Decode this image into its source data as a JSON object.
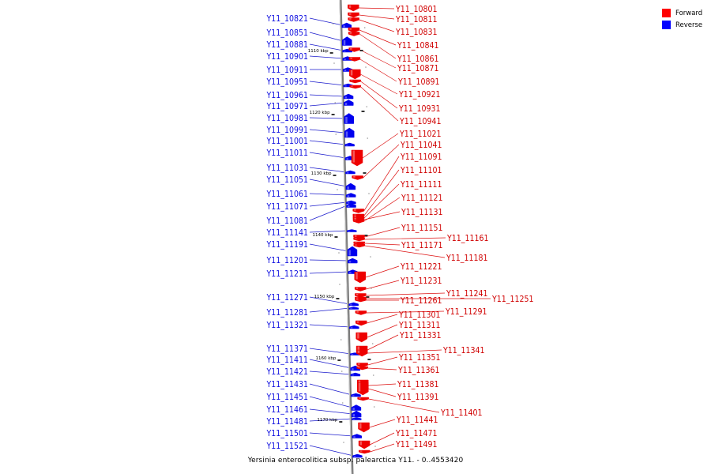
{
  "caption": "Yersinia enterocolitica subsp. palearctica Y11. - 0..4553420",
  "legend": [
    {
      "label": "Forward",
      "color": "#ff0000"
    },
    {
      "label": "Reverse",
      "color": "#0000ff"
    }
  ],
  "colors": {
    "forward": "#ee0000",
    "reverse": "#0000ee",
    "forward_label": "#d00000",
    "reverse_label": "#1010e0",
    "backbone": "#888888"
  },
  "kbp_ticks": [
    "1110 kbp",
    "1120 kbp",
    "1130 kbp",
    "1140 kbp",
    "1150 kbp",
    "1160 kbp",
    "1170 kbp"
  ],
  "reverse_genes": [
    "Y11_10821",
    "Y11_10851",
    "Y11_10881",
    "Y11_10901",
    "Y11_10911",
    "Y11_10951",
    "Y11_10961",
    "Y11_10971",
    "Y11_10981",
    "Y11_10991",
    "Y11_11001",
    "Y11_11011",
    "Y11_11031",
    "Y11_11051",
    "Y11_11061",
    "Y11_11071",
    "Y11_11081",
    "Y11_11141",
    "Y11_11191",
    "Y11_11201",
    "Y11_11211",
    "Y11_11271",
    "Y11_11281",
    "Y11_11321",
    "Y11_11371",
    "Y11_11411",
    "Y11_11421",
    "Y11_11431",
    "Y11_11451",
    "Y11_11461",
    "Y11_11481",
    "Y11_11501",
    "Y11_11521"
  ],
  "forward_genes": [
    "Y11_10801",
    "Y11_10811",
    "Y11_10831",
    "Y11_10841",
    "Y11_10861",
    "Y11_10871",
    "Y11_10891",
    "Y11_10921",
    "Y11_10931",
    "Y11_10941",
    "Y11_11021",
    "Y11_11041",
    "Y11_11091",
    "Y11_11101",
    "Y11_11111",
    "Y11_11121",
    "Y11_11131",
    "Y11_11151",
    "Y11_11161",
    "Y11_11171",
    "Y11_11181",
    "Y11_11221",
    "Y11_11231",
    "Y11_11241",
    "Y11_11251",
    "Y11_11261",
    "Y11_11291",
    "Y11_11301",
    "Y11_11311",
    "Y11_11331",
    "Y11_11341",
    "Y11_11351",
    "Y11_11361",
    "Y11_11381",
    "Y11_11391",
    "Y11_11401",
    "Y11_11441",
    "Y11_11471",
    "Y11_11491"
  ]
}
